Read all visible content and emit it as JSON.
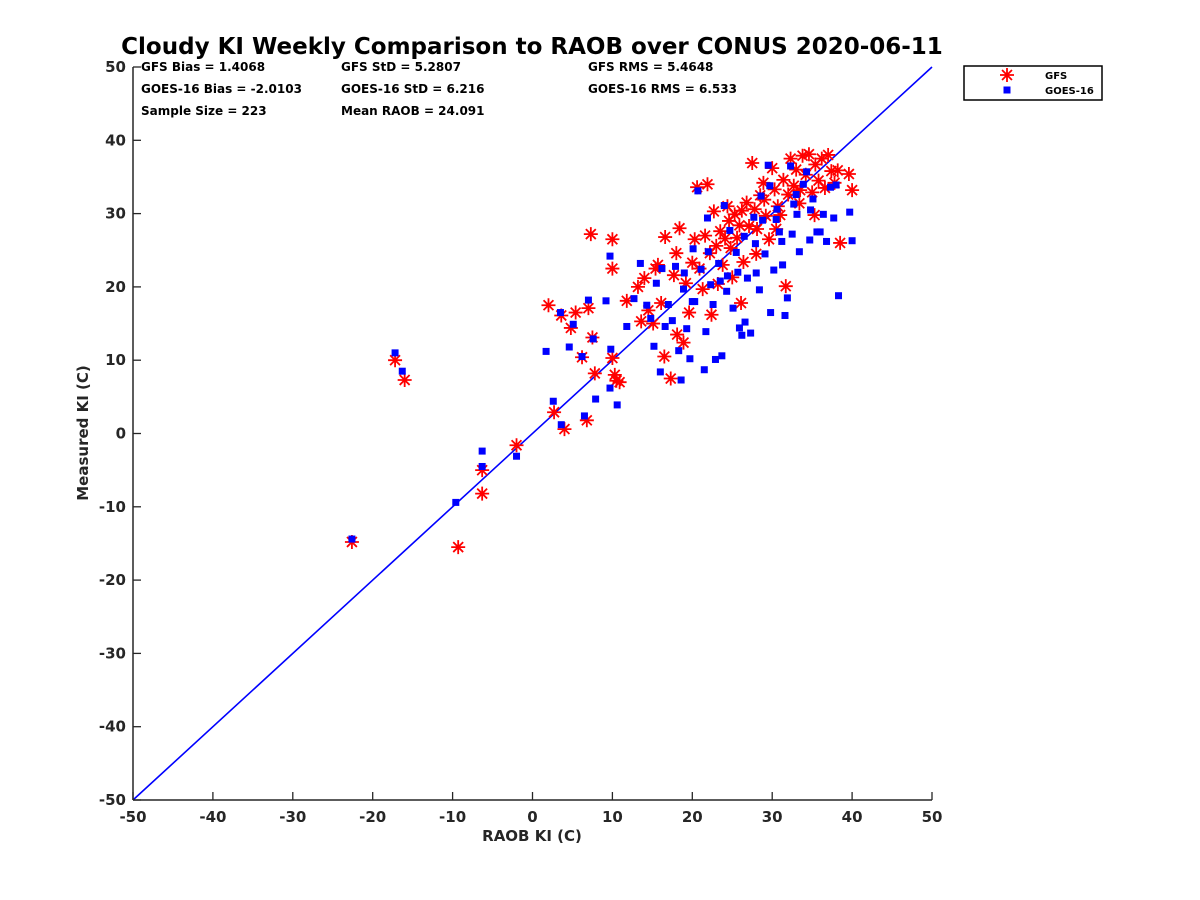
{
  "chart_data": {
    "type": "scatter",
    "title": "Cloudy KI Weekly Comparison to RAOB over CONUS 2020-06-11",
    "xlabel": "RAOB KI (C)",
    "ylabel": "Measured KI (C)",
    "xlim": [
      -50,
      50
    ],
    "ylim": [
      -50,
      50
    ],
    "xticks": [
      "-50",
      "-40",
      "-30",
      "-20",
      "-10",
      "0",
      "10",
      "20",
      "30",
      "40",
      "50"
    ],
    "yticks": [
      "-50",
      "-40",
      "-30",
      "-20",
      "-10",
      "0",
      "10",
      "20",
      "30",
      "40",
      "50"
    ],
    "grid": false,
    "legend_position": "top-right outside",
    "reference_line": {
      "x": [
        -50,
        50
      ],
      "y": [
        -50,
        50
      ],
      "color": "#0000ff"
    },
    "stats": [
      [
        "GFS Bias = 1.4068",
        "GFS StD = 5.2807",
        "GFS RMS = 5.4648"
      ],
      [
        "GOES-16 Bias = -2.0103",
        "GOES-16 StD = 6.216",
        "GOES-16 RMS = 6.533"
      ],
      [
        "Sample Size = 223",
        "Mean RAOB = 24.091",
        ""
      ]
    ],
    "series": [
      {
        "name": "GFS",
        "marker": "asterisk",
        "color": "#ff0000",
        "points": [
          [
            -22.6,
            -14.8
          ],
          [
            -17.2,
            10.0
          ],
          [
            -16.0,
            7.3
          ],
          [
            -9.3,
            -15.5
          ],
          [
            -6.3,
            -5.0
          ],
          [
            -6.3,
            -8.2
          ],
          [
            -2.0,
            -1.6
          ],
          [
            2.0,
            17.5
          ],
          [
            2.7,
            2.9
          ],
          [
            3.6,
            16.1
          ],
          [
            4.0,
            0.6
          ],
          [
            4.8,
            14.4
          ],
          [
            5.4,
            16.5
          ],
          [
            6.2,
            10.4
          ],
          [
            6.8,
            1.8
          ],
          [
            7.0,
            17.1
          ],
          [
            7.3,
            27.2
          ],
          [
            7.5,
            13.1
          ],
          [
            7.8,
            8.2
          ],
          [
            10.0,
            26.5
          ],
          [
            10.0,
            22.5
          ],
          [
            10.0,
            10.3
          ],
          [
            10.3,
            8.0
          ],
          [
            10.5,
            7.2
          ],
          [
            10.9,
            7.0
          ],
          [
            11.8,
            18.1
          ],
          [
            13.2,
            20.0
          ],
          [
            13.6,
            15.3
          ],
          [
            14.0,
            21.2
          ],
          [
            14.5,
            16.8
          ],
          [
            15.1,
            15.0
          ],
          [
            15.4,
            22.5
          ],
          [
            15.7,
            23.0
          ],
          [
            16.1,
            17.8
          ],
          [
            16.5,
            10.5
          ],
          [
            16.6,
            26.8
          ],
          [
            17.3,
            7.5
          ],
          [
            17.7,
            21.6
          ],
          [
            18.0,
            24.6
          ],
          [
            18.1,
            13.5
          ],
          [
            18.4,
            28.0
          ],
          [
            18.9,
            12.4
          ],
          [
            19.2,
            20.5
          ],
          [
            19.6,
            16.5
          ],
          [
            20.0,
            23.3
          ],
          [
            20.3,
            26.5
          ],
          [
            20.6,
            33.6
          ],
          [
            20.9,
            22.5
          ],
          [
            21.3,
            19.7
          ],
          [
            21.6,
            27.0
          ],
          [
            21.9,
            34.0
          ],
          [
            22.2,
            24.6
          ],
          [
            22.4,
            16.2
          ],
          [
            22.7,
            30.3
          ],
          [
            23.0,
            25.6
          ],
          [
            23.2,
            20.4
          ],
          [
            23.5,
            27.6
          ],
          [
            23.8,
            23.0
          ],
          [
            24.1,
            26.6
          ],
          [
            24.4,
            31.0
          ],
          [
            24.6,
            29.0
          ],
          [
            25.0,
            21.3
          ],
          [
            25.3,
            29.9
          ],
          [
            25.6,
            26.7
          ],
          [
            25.9,
            28.4
          ],
          [
            26.1,
            17.8
          ],
          [
            26.4,
            23.4
          ],
          [
            26.8,
            31.5
          ],
          [
            27.1,
            28.3
          ],
          [
            27.5,
            36.9
          ],
          [
            27.8,
            30.6
          ],
          [
            28.1,
            27.9
          ],
          [
            28.5,
            32.5
          ],
          [
            28.9,
            34.2
          ],
          [
            29.2,
            29.7
          ],
          [
            29.6,
            26.5
          ],
          [
            30.0,
            36.2
          ],
          [
            30.3,
            33.3
          ],
          [
            30.7,
            31.0
          ],
          [
            31.0,
            29.8
          ],
          [
            31.4,
            34.6
          ],
          [
            31.7,
            20.1
          ],
          [
            32.0,
            32.6
          ],
          [
            32.3,
            37.5
          ],
          [
            32.7,
            33.8
          ],
          [
            33.0,
            36.0
          ],
          [
            33.4,
            31.4
          ],
          [
            33.8,
            37.9
          ],
          [
            34.2,
            35.3
          ],
          [
            34.6,
            38.1
          ],
          [
            35.0,
            32.9
          ],
          [
            35.4,
            36.7
          ],
          [
            35.8,
            34.5
          ],
          [
            36.2,
            37.5
          ],
          [
            36.6,
            33.5
          ],
          [
            37.0,
            38.0
          ],
          [
            37.4,
            35.8
          ],
          [
            37.8,
            34.2
          ],
          [
            38.2,
            35.9
          ],
          [
            38.5,
            26.0
          ],
          [
            39.6,
            35.4
          ],
          [
            40.0,
            33.2
          ],
          [
            28.0,
            24.5
          ],
          [
            30.5,
            27.9
          ],
          [
            26.2,
            30.4
          ],
          [
            24.8,
            25.3
          ],
          [
            33.5,
            33.2
          ],
          [
            29.0,
            31.9
          ],
          [
            35.3,
            29.8
          ]
        ]
      },
      {
        "name": "GOES-16",
        "marker": "square",
        "color": "#0000ff",
        "points": [
          [
            -22.6,
            -14.4
          ],
          [
            -17.2,
            11.0
          ],
          [
            -16.3,
            8.5
          ],
          [
            -9.6,
            -9.4
          ],
          [
            -6.3,
            -2.4
          ],
          [
            -6.3,
            -4.5
          ],
          [
            -2.0,
            -3.1
          ],
          [
            1.7,
            11.2
          ],
          [
            2.6,
            4.4
          ],
          [
            3.5,
            16.5
          ],
          [
            3.6,
            1.2
          ],
          [
            4.6,
            11.8
          ],
          [
            5.1,
            14.9
          ],
          [
            6.2,
            10.5
          ],
          [
            6.5,
            2.4
          ],
          [
            7.0,
            18.2
          ],
          [
            7.6,
            12.9
          ],
          [
            7.9,
            4.7
          ],
          [
            9.2,
            18.1
          ],
          [
            9.7,
            24.2
          ],
          [
            9.8,
            11.5
          ],
          [
            9.7,
            6.2
          ],
          [
            10.6,
            3.9
          ],
          [
            11.8,
            14.6
          ],
          [
            12.7,
            18.4
          ],
          [
            13.5,
            23.2
          ],
          [
            14.3,
            17.5
          ],
          [
            14.8,
            15.7
          ],
          [
            15.2,
            11.9
          ],
          [
            15.5,
            20.5
          ],
          [
            16.0,
            8.4
          ],
          [
            16.2,
            22.5
          ],
          [
            16.6,
            14.6
          ],
          [
            17.0,
            17.6
          ],
          [
            17.5,
            15.4
          ],
          [
            17.9,
            22.8
          ],
          [
            18.3,
            11.3
          ],
          [
            18.6,
            7.3
          ],
          [
            18.9,
            19.7
          ],
          [
            19.3,
            14.3
          ],
          [
            19.7,
            10.2
          ],
          [
            20.1,
            25.2
          ],
          [
            20.3,
            18.0
          ],
          [
            20.7,
            33.1
          ],
          [
            21.1,
            22.4
          ],
          [
            21.5,
            8.7
          ],
          [
            21.9,
            29.4
          ],
          [
            22.3,
            20.3
          ],
          [
            22.6,
            17.6
          ],
          [
            22.9,
            10.1
          ],
          [
            23.3,
            23.2
          ],
          [
            23.7,
            10.6
          ],
          [
            24.0,
            31.1
          ],
          [
            24.4,
            21.5
          ],
          [
            24.7,
            27.7
          ],
          [
            25.1,
            17.1
          ],
          [
            25.5,
            24.7
          ],
          [
            25.9,
            14.4
          ],
          [
            26.2,
            13.4
          ],
          [
            26.6,
            15.2
          ],
          [
            26.9,
            21.2
          ],
          [
            27.3,
            13.7
          ],
          [
            27.7,
            29.5
          ],
          [
            28.0,
            21.9
          ],
          [
            28.4,
            19.6
          ],
          [
            28.8,
            29.1
          ],
          [
            29.1,
            24.5
          ],
          [
            29.5,
            36.6
          ],
          [
            29.8,
            16.5
          ],
          [
            30.2,
            22.3
          ],
          [
            30.6,
            30.6
          ],
          [
            30.9,
            27.5
          ],
          [
            31.3,
            23.0
          ],
          [
            31.6,
            16.1
          ],
          [
            31.9,
            18.5
          ],
          [
            32.3,
            36.5
          ],
          [
            32.7,
            31.3
          ],
          [
            33.1,
            29.9
          ],
          [
            33.4,
            24.8
          ],
          [
            33.9,
            34.0
          ],
          [
            34.3,
            35.7
          ],
          [
            34.7,
            26.4
          ],
          [
            35.1,
            32.0
          ],
          [
            35.6,
            27.5
          ],
          [
            36.0,
            27.5
          ],
          [
            36.4,
            29.9
          ],
          [
            36.8,
            26.2
          ],
          [
            37.3,
            33.6
          ],
          [
            37.7,
            29.4
          ],
          [
            38.0,
            33.9
          ],
          [
            38.3,
            18.8
          ],
          [
            39.7,
            30.2
          ],
          [
            40.0,
            26.3
          ],
          [
            20.0,
            18.0
          ],
          [
            22.0,
            24.8
          ],
          [
            24.3,
            19.4
          ],
          [
            26.5,
            26.9
          ],
          [
            28.6,
            32.4
          ],
          [
            30.5,
            29.2
          ],
          [
            32.5,
            27.2
          ],
          [
            34.8,
            30.5
          ],
          [
            19.0,
            21.9
          ],
          [
            21.7,
            13.9
          ],
          [
            23.5,
            20.8
          ],
          [
            25.7,
            22.0
          ],
          [
            27.9,
            25.9
          ],
          [
            29.7,
            33.8
          ],
          [
            31.2,
            26.2
          ],
          [
            33.0,
            32.6
          ]
        ]
      }
    ]
  }
}
